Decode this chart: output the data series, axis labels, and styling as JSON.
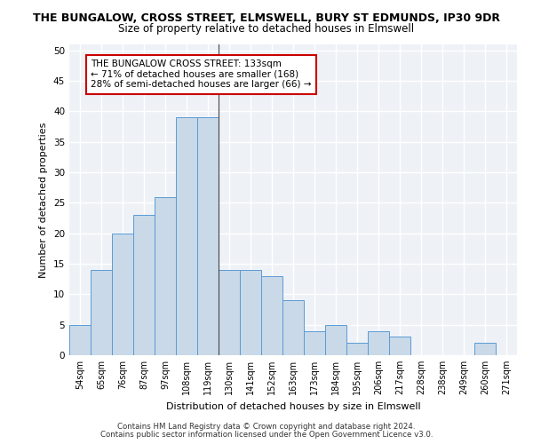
{
  "title_line1": "THE BUNGALOW, CROSS STREET, ELMSWELL, BURY ST EDMUNDS, IP30 9DR",
  "title_line2": "Size of property relative to detached houses in Elmswell",
  "xlabel": "Distribution of detached houses by size in Elmswell",
  "ylabel": "Number of detached properties",
  "bar_labels": [
    "54sqm",
    "65sqm",
    "76sqm",
    "87sqm",
    "97sqm",
    "108sqm",
    "119sqm",
    "130sqm",
    "141sqm",
    "152sqm",
    "163sqm",
    "173sqm",
    "184sqm",
    "195sqm",
    "206sqm",
    "217sqm",
    "228sqm",
    "238sqm",
    "249sqm",
    "260sqm",
    "271sqm"
  ],
  "bar_values": [
    5,
    14,
    20,
    23,
    26,
    39,
    39,
    14,
    14,
    13,
    9,
    4,
    5,
    2,
    4,
    3,
    0,
    0,
    0,
    2,
    0
  ],
  "bar_color": "#c9d9e8",
  "bar_edge_color": "#5b9bd5",
  "annotation_text": "THE BUNGALOW CROSS STREET: 133sqm\n← 71% of detached houses are smaller (168)\n28% of semi-detached houses are larger (66) →",
  "annotation_box_color": "#ffffff",
  "annotation_box_edge_color": "#cc0000",
  "vline_x": 6.5,
  "ylim": [
    0,
    51
  ],
  "yticks": [
    0,
    5,
    10,
    15,
    20,
    25,
    30,
    35,
    40,
    45,
    50
  ],
  "background_color": "#eef2f7",
  "grid_color": "#ffffff",
  "footer_line1": "Contains HM Land Registry data © Crown copyright and database right 2024.",
  "footer_line2": "Contains public sector information licensed under the Open Government Licence v3.0."
}
